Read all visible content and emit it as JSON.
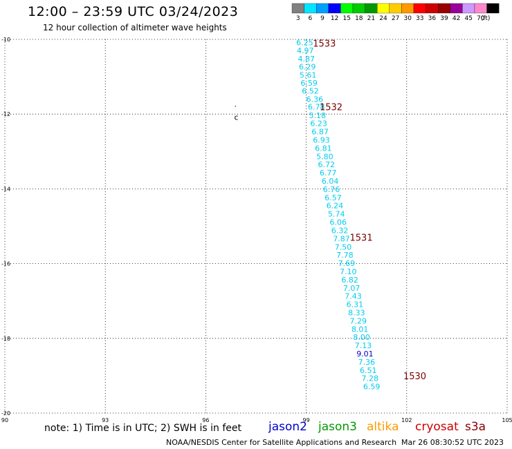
{
  "title": "12:00 – 23:59 UTC 03/24/2023",
  "subtitle": "12 hour collection of altimeter wave heights",
  "note": "note:  1) Time is in UTC;  2) SWH is in feet",
  "credit": "NOAA/NESDIS Center for Satellite Applications and Research",
  "timestamp": "Mar 26 08:30:52 UTC 2023",
  "colorbar": {
    "unit": "(ft)",
    "bins": [
      {
        "label": "3",
        "color": "#808080"
      },
      {
        "label": "6",
        "color": "#00e5ff"
      },
      {
        "label": "9",
        "color": "#00a0ff"
      },
      {
        "label": "12",
        "color": "#0000ff"
      },
      {
        "label": "15",
        "color": "#00ff00"
      },
      {
        "label": "18",
        "color": "#00cc00"
      },
      {
        "label": "21",
        "color": "#009900"
      },
      {
        "label": "24",
        "color": "#ffff00"
      },
      {
        "label": "27",
        "color": "#ffcc00"
      },
      {
        "label": "30",
        "color": "#ff9900"
      },
      {
        "label": "33",
        "color": "#ff0000"
      },
      {
        "label": "36",
        "color": "#cc0000"
      },
      {
        "label": "39",
        "color": "#990000"
      },
      {
        "label": "42",
        "color": "#990099"
      },
      {
        "label": "45",
        "color": "#cc99ff"
      },
      {
        "label": "70",
        "color": "#ff88cc"
      },
      {
        "label": "",
        "color": "#000000"
      }
    ]
  },
  "satellites": [
    {
      "name": "jason2",
      "color": "#0000cc"
    },
    {
      "name": "jason3",
      "color": "#009900"
    },
    {
      "name": "altika",
      "color": "#ff9900"
    },
    {
      "name": "cryosat",
      "color": "#cc0000"
    },
    {
      "name": "s3a",
      "color": "#880000"
    }
  ],
  "map": {
    "lon_range": [
      90,
      105
    ],
    "lat_range": [
      -20,
      -10
    ],
    "lon_ticks": [
      "90",
      "93",
      "96",
      "99",
      "102",
      "105"
    ],
    "lat_ticks": [
      "-10",
      "-12",
      "-14",
      "-16",
      "-18",
      "-20"
    ]
  },
  "orbit_labels": [
    {
      "text": "1533",
      "lon": 99.2,
      "lat": -10.1
    },
    {
      "text": "1532",
      "lon": 99.4,
      "lat": -11.8
    },
    {
      "text": "1531",
      "lon": 100.3,
      "lat": -15.3
    },
    {
      "text": "1530",
      "lon": 101.9,
      "lat": -19.0
    }
  ],
  "markers": [
    {
      "text": ".",
      "lon": 96.85,
      "lat": -11.8
    },
    {
      "text": "c",
      "lon": 96.85,
      "lat": -12.15
    }
  ],
  "wave_heights": [
    {
      "v": "6.25",
      "lon": 98.7,
      "lat": -10.08,
      "color": "#00ccee"
    },
    {
      "v": "4.97",
      "lon": 98.72,
      "lat": -10.3,
      "color": "#00ccee"
    },
    {
      "v": "4.87",
      "lon": 98.75,
      "lat": -10.52,
      "color": "#00ccee"
    },
    {
      "v": "6.29",
      "lon": 98.78,
      "lat": -10.73,
      "color": "#00ccee"
    },
    {
      "v": "5.61",
      "lon": 98.8,
      "lat": -10.95,
      "color": "#00ccee"
    },
    {
      "v": "6.59",
      "lon": 98.83,
      "lat": -11.16,
      "color": "#00ccee"
    },
    {
      "v": "6.52",
      "lon": 98.87,
      "lat": -11.38,
      "color": "#00ccee"
    },
    {
      "v": "6.36",
      "lon": 99.0,
      "lat": -11.6,
      "color": "#00ccee"
    },
    {
      "v": "6.78",
      "lon": 99.05,
      "lat": -11.8,
      "color": "#00ccee"
    },
    {
      "v": "5.18",
      "lon": 99.08,
      "lat": -12.03,
      "color": "#00ccee"
    },
    {
      "v": "6.23",
      "lon": 99.12,
      "lat": -12.25,
      "color": "#00ccee"
    },
    {
      "v": "6.87",
      "lon": 99.16,
      "lat": -12.47,
      "color": "#00ccee"
    },
    {
      "v": "6.93",
      "lon": 99.2,
      "lat": -12.69,
      "color": "#00ccee"
    },
    {
      "v": "6.81",
      "lon": 99.26,
      "lat": -12.91,
      "color": "#00ccee"
    },
    {
      "v": "5.80",
      "lon": 99.3,
      "lat": -13.13,
      "color": "#00ccee"
    },
    {
      "v": "6.72",
      "lon": 99.35,
      "lat": -13.35,
      "color": "#00ccee"
    },
    {
      "v": "6.77",
      "lon": 99.4,
      "lat": -13.57,
      "color": "#00ccee"
    },
    {
      "v": "6.04",
      "lon": 99.46,
      "lat": -13.79,
      "color": "#00ccee"
    },
    {
      "v": "6.76",
      "lon": 99.5,
      "lat": -14.01,
      "color": "#00ccee"
    },
    {
      "v": "6.57",
      "lon": 99.55,
      "lat": -14.23,
      "color": "#00ccee"
    },
    {
      "v": "6.24",
      "lon": 99.6,
      "lat": -14.45,
      "color": "#00ccee"
    },
    {
      "v": "5.74",
      "lon": 99.65,
      "lat": -14.67,
      "color": "#00ccee"
    },
    {
      "v": "6.06",
      "lon": 99.7,
      "lat": -14.89,
      "color": "#00ccee"
    },
    {
      "v": "6.32",
      "lon": 99.75,
      "lat": -15.11,
      "color": "#00ccee"
    },
    {
      "v": "7.87",
      "lon": 99.8,
      "lat": -15.33,
      "color": "#00ccee"
    },
    {
      "v": "7.50",
      "lon": 99.85,
      "lat": -15.55,
      "color": "#00ccee"
    },
    {
      "v": "7.78",
      "lon": 99.9,
      "lat": -15.77,
      "color": "#00ccee"
    },
    {
      "v": "7.69",
      "lon": 99.95,
      "lat": -15.99,
      "color": "#00ccee"
    },
    {
      "v": "7.10",
      "lon": 100.0,
      "lat": -16.21,
      "color": "#00ccee"
    },
    {
      "v": "6.82",
      "lon": 100.05,
      "lat": -16.43,
      "color": "#00ccee"
    },
    {
      "v": "7.07",
      "lon": 100.1,
      "lat": -16.65,
      "color": "#00ccee"
    },
    {
      "v": "7.43",
      "lon": 100.15,
      "lat": -16.87,
      "color": "#00ccee"
    },
    {
      "v": "6.31",
      "lon": 100.2,
      "lat": -17.09,
      "color": "#00ccee"
    },
    {
      "v": "8.33",
      "lon": 100.25,
      "lat": -17.31,
      "color": "#00ccee"
    },
    {
      "v": "7.29",
      "lon": 100.3,
      "lat": -17.53,
      "color": "#00ccee"
    },
    {
      "v": "8.01",
      "lon": 100.35,
      "lat": -17.75,
      "color": "#00ccee"
    },
    {
      "v": "8.00",
      "lon": 100.4,
      "lat": -17.97,
      "color": "#00ccee"
    },
    {
      "v": "7.13",
      "lon": 100.45,
      "lat": -18.19,
      "color": "#00ccee"
    },
    {
      "v": "9.01",
      "lon": 100.5,
      "lat": -18.41,
      "color": "#0000cc"
    },
    {
      "v": "7.36",
      "lon": 100.55,
      "lat": -18.63,
      "color": "#00ccee"
    },
    {
      "v": "6.51",
      "lon": 100.6,
      "lat": -18.85,
      "color": "#00ccee"
    },
    {
      "v": "7.28",
      "lon": 100.65,
      "lat": -19.07,
      "color": "#00ccee"
    },
    {
      "v": "6.59",
      "lon": 100.7,
      "lat": -19.29,
      "color": "#00ccee"
    }
  ]
}
